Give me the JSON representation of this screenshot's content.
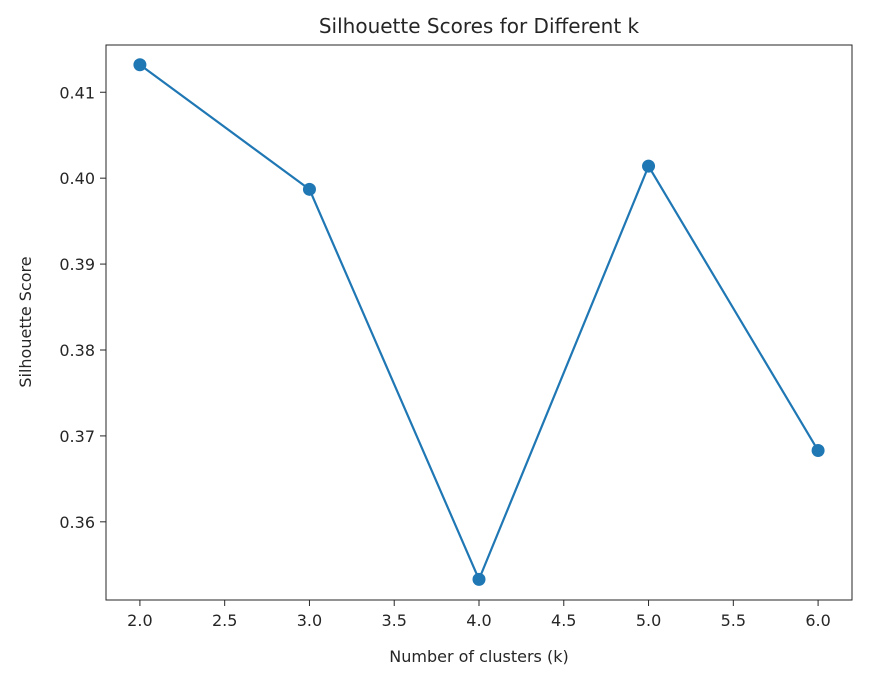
{
  "chart_data": {
    "type": "line",
    "title": "Silhouette Scores for Different k",
    "xlabel": "Number of clusters (k)",
    "ylabel": "Silhouette Score",
    "xlim": [
      1.8,
      6.2
    ],
    "ylim": [
      0.3509,
      0.4155
    ],
    "xticks": [
      2.0,
      2.5,
      3.0,
      3.5,
      4.0,
      4.5,
      5.0,
      5.5,
      6.0
    ],
    "xtick_labels": [
      "2.0",
      "2.5",
      "3.0",
      "3.5",
      "4.0",
      "4.5",
      "5.0",
      "5.5",
      "6.0"
    ],
    "yticks": [
      0.36,
      0.37,
      0.38,
      0.39,
      0.4,
      0.41
    ],
    "ytick_labels": [
      "0.36",
      "0.37",
      "0.38",
      "0.39",
      "0.40",
      "0.41"
    ],
    "grid": false,
    "series": [
      {
        "color": "#1f77b4",
        "marker": "circle",
        "x": [
          2,
          3,
          4,
          5,
          6
        ],
        "y": [
          0.4132,
          0.3987,
          0.3533,
          0.4014,
          0.3683
        ]
      }
    ]
  }
}
